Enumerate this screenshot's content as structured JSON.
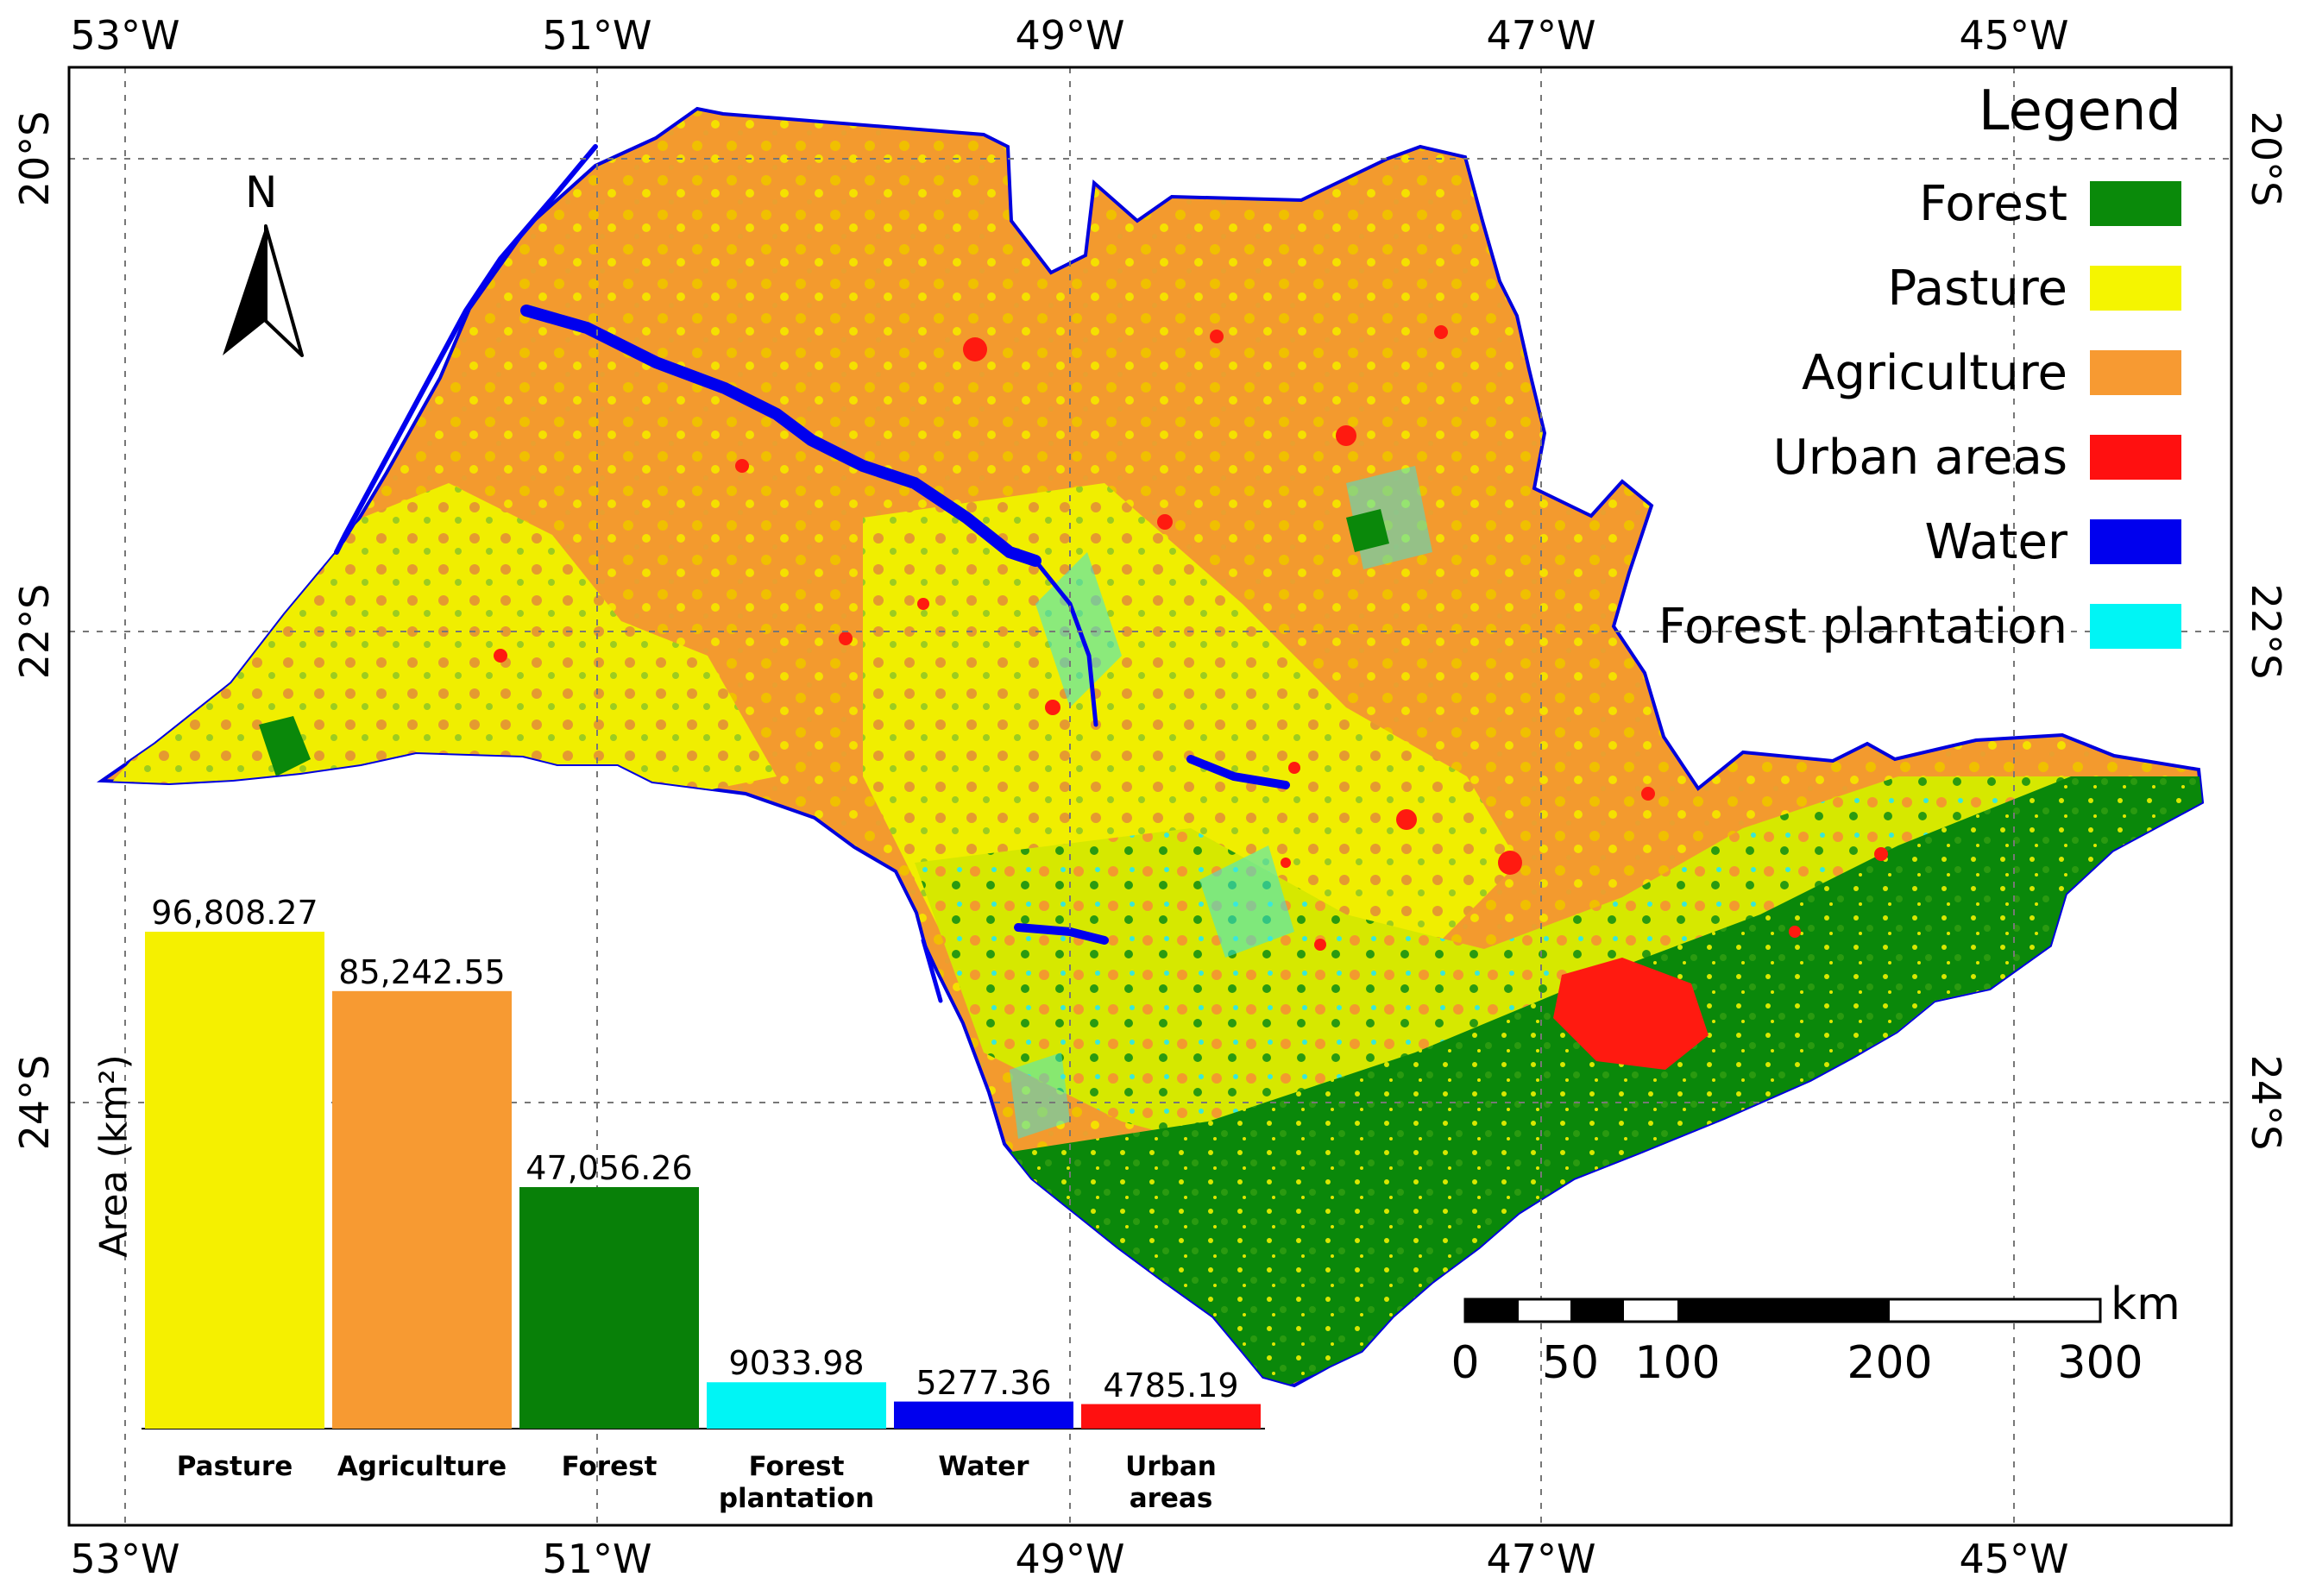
{
  "map": {
    "graticule": {
      "longitudes": [
        "53°W",
        "51°W",
        "49°W",
        "47°W",
        "45°W"
      ],
      "latitudes": [
        "20°S",
        "22°S",
        "24°S"
      ]
    },
    "north_arrow": {
      "label": "N"
    },
    "legend": {
      "title": "Legend",
      "items": [
        {
          "label": "Forest",
          "color": "#0a8a0a"
        },
        {
          "label": "Pasture",
          "color": "#f5f500"
        },
        {
          "label": "Agriculture",
          "color": "#f79a32"
        },
        {
          "label": "Urban areas",
          "color": "#ff1010"
        },
        {
          "label": "Water",
          "color": "#0000ee"
        },
        {
          "label": "Forest plantation",
          "color": "#00f5f5"
        }
      ]
    },
    "scale_bar": {
      "unit": "km",
      "ticks": [
        "0",
        "50",
        "100",
        "200",
        "300"
      ]
    }
  },
  "chart_data": {
    "type": "bar",
    "ylabel": "Area (km²)",
    "categories": [
      "Pasture",
      "Agriculture",
      "Forest",
      "Forest plantation",
      "Water",
      "Urban areas"
    ],
    "values": [
      96808.27,
      85242.55,
      47056.26,
      9033.98,
      5277.36,
      4785.19
    ],
    "value_labels": [
      "96,808.27",
      "85,242.55",
      "47,056.26",
      "9033.98",
      "5277.36",
      "4785.19"
    ],
    "colors": [
      "#f5f000",
      "#f79a32",
      "#088008",
      "#00f5f5",
      "#0000ee",
      "#ff1010"
    ],
    "ylim": [
      0,
      100000
    ]
  }
}
